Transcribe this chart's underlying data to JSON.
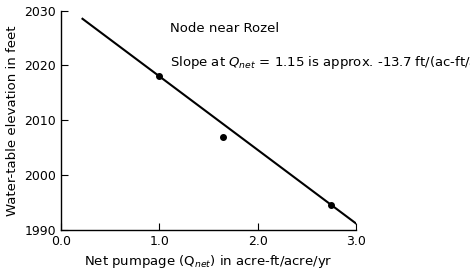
{
  "title_line1": "Node near Rozel",
  "xlabel": "Net pumpage (Q$_{net}$) in acre-ft/acre/yr",
  "ylabel": "Water-table elevation in feet",
  "xlim": [
    0.0,
    3.0
  ],
  "ylim": [
    1990,
    2030
  ],
  "xticks": [
    0.0,
    1.0,
    2.0,
    3.0
  ],
  "yticks": [
    1990,
    2000,
    2010,
    2020,
    2030
  ],
  "data_points_x": [
    1.0,
    1.65,
    2.75
  ],
  "data_points_y": [
    2018.0,
    2007.0,
    1994.5
  ],
  "line_x": [
    0.22,
    3.0
  ],
  "line_y": [
    2028.5,
    1991.2
  ],
  "line_color": "#000000",
  "marker_color": "#000000",
  "background_color": "#ffffff",
  "annotation_fontsize": 9.5,
  "label_fontsize": 9.5,
  "tick_fontsize": 9
}
